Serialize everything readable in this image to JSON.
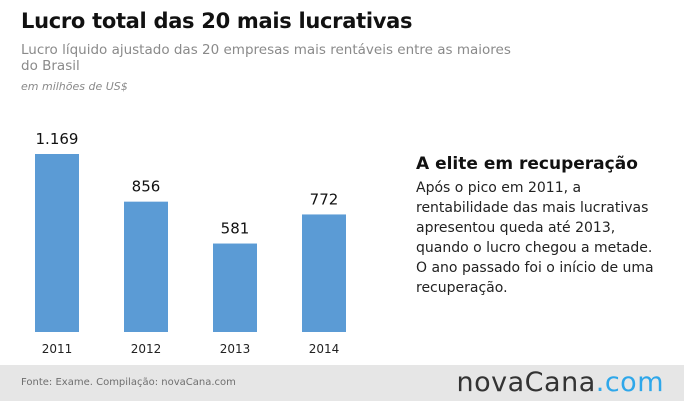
{
  "header": {
    "title": "Lucro total das 20 mais lucrativas",
    "subtitle": "Lucro líquido ajustado das 20 empresas mais rentáveis entre as maiores do Brasil",
    "unit": "em milhões de US$"
  },
  "chart_data": {
    "type": "bar",
    "categories": [
      "2011",
      "2012",
      "2013",
      "2014"
    ],
    "values": [
      1169,
      856,
      581,
      772
    ],
    "value_labels": [
      "1.169",
      "856",
      "581",
      "772"
    ],
    "title": "",
    "xlabel": "",
    "ylabel": "",
    "ylim": [
      0,
      1169
    ],
    "grid": false,
    "bar_color": "#5b9bd5"
  },
  "annotation": {
    "title": "A elite em recuperação",
    "text": "Após o pico em 2011, a rentabilidade das mais lucrativas apresentou queda até 2013, quando o lucro chegou a metade. O ano passado foi o início de uma recuperação."
  },
  "footer": {
    "source": "Fonte: Exame. Compilação: novaCana.com",
    "logo_main": "novaCana",
    "logo_suffix": ".com",
    "logo_suffix_color": "#2ea7ea"
  }
}
